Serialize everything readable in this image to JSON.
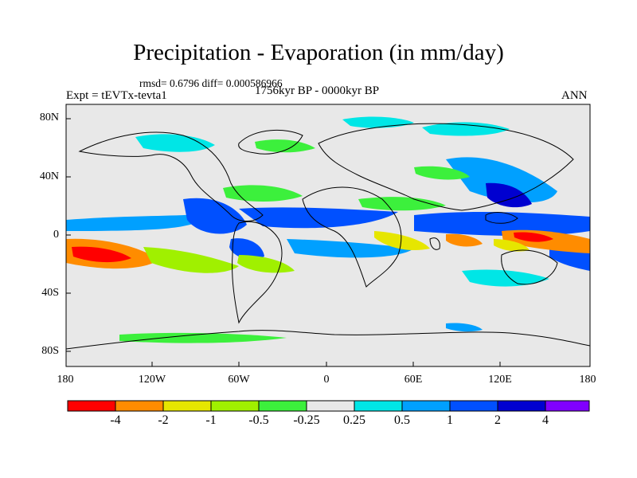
{
  "title": "Precipitation - Evaporation (in mm/day)",
  "stats": "rmsd= 0.6796  diff= 0.000586966",
  "period": "1756kyr BP - 0000kyr BP",
  "experiment": "Expt = tEVTx-tevta1",
  "season": "ANN",
  "lat_labels": [
    "80N",
    "40N",
    "0",
    "40S",
    "80S"
  ],
  "lon_labels": [
    "180",
    "120W",
    "60W",
    "0",
    "60E",
    "120E",
    "180"
  ],
  "colorbar": {
    "labels": [
      "-4",
      "-2",
      "-1",
      "-0.5",
      "-0.25",
      "0.25",
      "0.5",
      "1",
      "2",
      "4"
    ],
    "colors": [
      "#ff0000",
      "#ff8c00",
      "#e6e600",
      "#a0f000",
      "#3cf03c",
      "#e8e8e8",
      "#00e6e6",
      "#00a0ff",
      "#0050ff",
      "#0000d0",
      "#8000ff"
    ]
  },
  "palette": {
    "ocean_bg": "#e8e8e8",
    "red": "#ff0000",
    "orange": "#ff8c00",
    "yellow": "#e6e600",
    "lightgreen": "#a0f000",
    "green": "#3cf03c",
    "cyan": "#00e6e6",
    "sky": "#00a0ff",
    "blue": "#0050ff",
    "navy": "#0000d0"
  }
}
